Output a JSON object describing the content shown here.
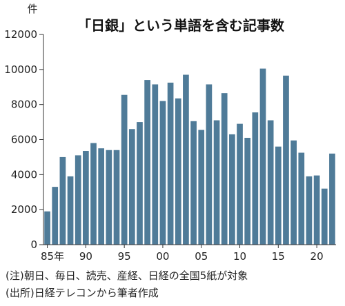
{
  "chart_data": {
    "type": "bar",
    "title": "「日銀」という単語を含む記事数",
    "ylabel": "件",
    "ylim": [
      0,
      12000
    ],
    "y_ticks": [
      0,
      2000,
      4000,
      6000,
      8000,
      10000,
      12000
    ],
    "y_tick_labels": [
      "0",
      "2000",
      "4000",
      "6000",
      "8000",
      "10000",
      "12000"
    ],
    "x_tick_labels": [
      {
        "year": 1985,
        "label": "85年"
      },
      {
        "year": 1990,
        "label": "90"
      },
      {
        "year": 1995,
        "label": "95"
      },
      {
        "year": 2000,
        "label": "00"
      },
      {
        "year": 2005,
        "label": "05"
      },
      {
        "year": 2010,
        "label": "10"
      },
      {
        "year": 2015,
        "label": "15"
      },
      {
        "year": 2020,
        "label": "20"
      }
    ],
    "bar_color": "#4f7b98",
    "grid": false,
    "legend": "none",
    "categories": [
      1985,
      1986,
      1987,
      1988,
      1989,
      1990,
      1991,
      1992,
      1993,
      1994,
      1995,
      1996,
      1997,
      1998,
      1999,
      2000,
      2001,
      2002,
      2003,
      2004,
      2005,
      2006,
      2007,
      2008,
      2009,
      2010,
      2011,
      2012,
      2013,
      2014,
      2015,
      2016,
      2017,
      2018,
      2019,
      2020,
      2021,
      2022
    ],
    "values": [
      1900,
      3300,
      5000,
      3900,
      5100,
      5350,
      5800,
      5500,
      5400,
      5400,
      8550,
      6600,
      7000,
      9400,
      9150,
      8200,
      9250,
      8350,
      9700,
      7050,
      6550,
      9150,
      7100,
      8650,
      6300,
      6900,
      6100,
      7550,
      10050,
      7100,
      5600,
      9650,
      5950,
      5250,
      3900,
      3950,
      3200,
      5200
    ]
  },
  "notes": [
    "(注)朝日、毎日、読売、産経、日経の全国5紙が対象",
    "(出所)日経テレコンから筆者作成"
  ]
}
